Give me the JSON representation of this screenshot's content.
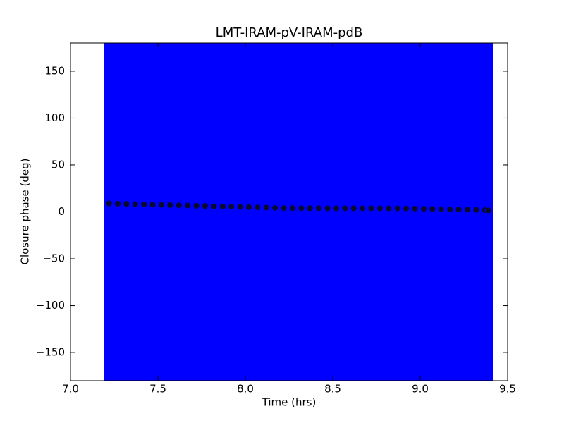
{
  "chart_data": {
    "type": "errorbar_scatter",
    "title": "LMT-IRAM-pV-IRAM-pdB",
    "xlabel": "Time (hrs)",
    "ylabel": "Closure phase (deg)",
    "xlim": [
      7.0,
      9.5
    ],
    "ylim": [
      -180,
      180
    ],
    "xticks": [
      {
        "value": 7,
        "label": "7.0"
      },
      {
        "value": 7.5,
        "label": "7.5"
      },
      {
        "value": 8,
        "label": "8.0"
      },
      {
        "value": 8.5,
        "label": "8.5"
      },
      {
        "value": 9,
        "label": "9.0"
      },
      {
        "value": 9.5,
        "label": "9.5"
      }
    ],
    "yticks": [
      {
        "value": -150,
        "label": "−150"
      },
      {
        "value": -100,
        "label": "−100"
      },
      {
        "value": -50,
        "label": "−50"
      },
      0,
      50,
      100,
      150
    ],
    "error_color": "#0000ff",
    "marker_color": "#0a0a2e",
    "x": [
      7.22,
      7.27,
      7.32,
      7.37,
      7.42,
      7.47,
      7.52,
      7.57,
      7.62,
      7.67,
      7.72,
      7.77,
      7.82,
      7.87,
      7.92,
      7.97,
      8.02,
      8.07,
      8.12,
      8.17,
      8.22,
      8.27,
      8.32,
      8.37,
      8.42,
      8.47,
      8.52,
      8.57,
      8.62,
      8.67,
      8.72,
      8.77,
      8.82,
      8.87,
      8.92,
      8.97,
      9.02,
      9.07,
      9.12,
      9.17,
      9.22,
      9.27,
      9.32,
      9.37,
      9.39
    ],
    "values": [
      9,
      8.75,
      8.5,
      8.25,
      8,
      7.75,
      7.5,
      7.25,
      7,
      6.75,
      6.5,
      6.25,
      6,
      5.75,
      5.5,
      5.25,
      5,
      4.75,
      4.5,
      4.25,
      4,
      4,
      3.9,
      3.9,
      3.9,
      3.8,
      3.8,
      3.8,
      3.8,
      3.8,
      3.8,
      3.8,
      3.7,
      3.7,
      3.6,
      3.5,
      3.3,
      3.1,
      2.9,
      2.7,
      2.5,
      2.3,
      2.1,
      1.9,
      1.6
    ],
    "errors": [
      200,
      200,
      200,
      200,
      200,
      200,
      200,
      200,
      200,
      200,
      200,
      200,
      200,
      200,
      200,
      200,
      200,
      200,
      200,
      200,
      200,
      200,
      200,
      200,
      200,
      200,
      200,
      200,
      200,
      200,
      200,
      200,
      200,
      200,
      200,
      200,
      200,
      200,
      200,
      200,
      200,
      200,
      200,
      200,
      200
    ]
  }
}
